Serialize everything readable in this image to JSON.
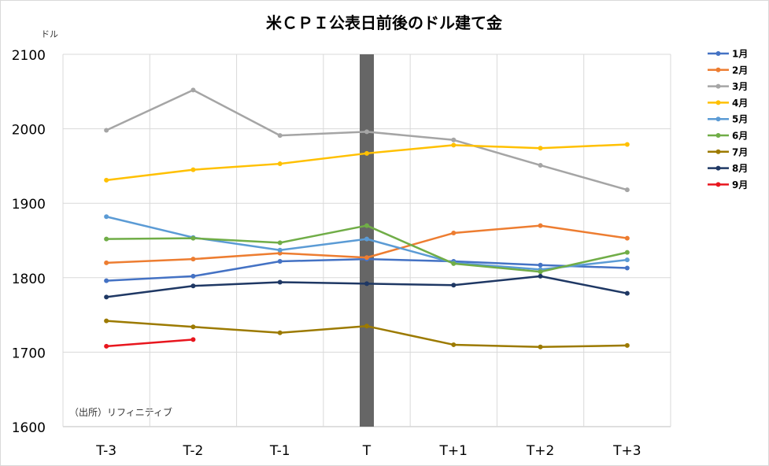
{
  "chart_data": {
    "type": "line",
    "title": "米ＣＰＩ公表日前後のドル建て金",
    "ylabel": "ドル",
    "source_note": "（出所）リフィニティブ",
    "categories": [
      "T-3",
      "T-2",
      "T-1",
      "T",
      "T+1",
      "T+2",
      "T+3"
    ],
    "ylim": [
      1600,
      2100
    ],
    "yticks": [
      1600,
      1700,
      1800,
      1900,
      2000,
      2100
    ],
    "grid": true,
    "legend_position": "right",
    "highlight": {
      "category": "T",
      "color": "#666666"
    },
    "series": [
      {
        "name": "1月",
        "color": "#4472C4",
        "values": [
          1796,
          1802,
          1822,
          1825,
          1822,
          1817,
          1813
        ]
      },
      {
        "name": "2月",
        "color": "#ED7D31",
        "values": [
          1820,
          1825,
          1833,
          1827,
          1860,
          1870,
          1853
        ]
      },
      {
        "name": "3月",
        "color": "#A5A5A5",
        "values": [
          1998,
          2052,
          1991,
          1996,
          1985,
          1951,
          1918
        ]
      },
      {
        "name": "4月",
        "color": "#FFC000",
        "values": [
          1931,
          1945,
          1953,
          1967,
          1978,
          1974,
          1979
        ]
      },
      {
        "name": "5月",
        "color": "#5B9BD5",
        "values": [
          1882,
          1854,
          1837,
          1852,
          1820,
          1811,
          1824
        ]
      },
      {
        "name": "6月",
        "color": "#70AD47",
        "values": [
          1852,
          1853,
          1847,
          1870,
          1819,
          1808,
          1834
        ]
      },
      {
        "name": "7月",
        "color": "#9C7A00",
        "values": [
          1742,
          1734,
          1726,
          1735,
          1710,
          1707,
          1709
        ]
      },
      {
        "name": "8月",
        "color": "#1F3864",
        "values": [
          1774,
          1789,
          1794,
          1792,
          1790,
          1802,
          1779
        ]
      },
      {
        "name": "9月",
        "color": "#E8161E",
        "values": [
          1708,
          1717,
          null,
          null,
          null,
          null,
          null
        ]
      }
    ]
  }
}
